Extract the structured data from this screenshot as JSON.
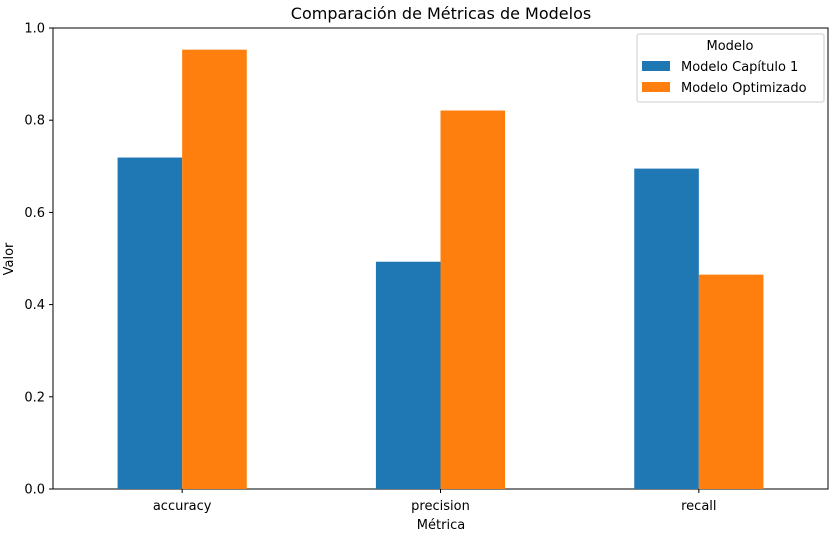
{
  "chart_data": {
    "type": "bar",
    "title": "Comparación de Métricas de Modelos",
    "xlabel": "Métrica",
    "ylabel": "Valor",
    "categories": [
      "accuracy",
      "precision",
      "recall"
    ],
    "series": [
      {
        "name": "Modelo Capítulo 1",
        "values": [
          0.719,
          0.493,
          0.695
        ],
        "color": "#1f77b4"
      },
      {
        "name": "Modelo Optimizado",
        "values": [
          0.953,
          0.821,
          0.465
        ],
        "color": "#ff7f0e"
      }
    ],
    "ylim": [
      0.0,
      1.0
    ],
    "yticks": [
      "0.0",
      "0.2",
      "0.4",
      "0.6",
      "0.8",
      "1.0"
    ],
    "grid": false,
    "legend": {
      "title": "Modelo",
      "placement": "top-right"
    }
  }
}
